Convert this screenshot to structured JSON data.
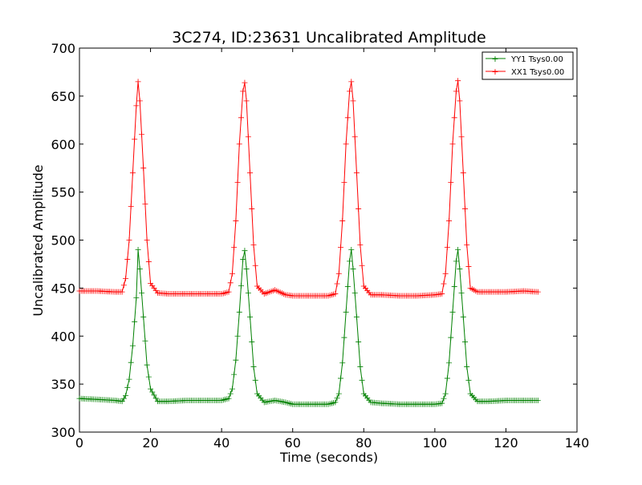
{
  "chart_data": {
    "type": "line",
    "title": "3C274, ID:23631 Uncalibrated Amplitude",
    "xlabel": "Time (seconds)",
    "ylabel": "Uncalibrated Amplitude",
    "xlim": [
      0,
      140
    ],
    "ylim": [
      300,
      700
    ],
    "xticks": [
      0,
      20,
      40,
      60,
      80,
      100,
      120,
      140
    ],
    "yticks": [
      300,
      350,
      400,
      450,
      500,
      550,
      600,
      650,
      700
    ],
    "grid": false,
    "legend_position": "top-right",
    "marker": "plus",
    "series": [
      {
        "name": "YY1 Tsys0.00",
        "color": "#008000",
        "peaks": [
          16.5,
          46.5,
          76.5,
          106.5
        ],
        "peak_values": [
          490,
          489,
          490,
          490
        ],
        "sample_interval": 0.5,
        "x_range": [
          0,
          129
        ],
        "x": [
          0,
          5,
          10,
          12,
          13,
          14,
          15,
          16,
          16.5,
          17,
          18,
          19,
          20,
          22,
          25,
          30,
          35,
          40,
          42,
          43,
          44,
          45,
          46,
          46.5,
          47,
          48,
          49,
          50,
          52,
          55,
          58,
          60,
          65,
          70,
          72,
          73,
          74,
          75,
          76,
          76.5,
          77,
          78,
          79,
          80,
          82,
          85,
          90,
          95,
          100,
          102,
          103,
          104,
          105,
          106,
          106.5,
          107,
          108,
          109,
          110,
          112,
          115,
          120,
          125,
          129
        ],
        "y": [
          335,
          334,
          333,
          332,
          338,
          355,
          390,
          440,
          490,
          470,
          420,
          370,
          345,
          332,
          332,
          333,
          333,
          333,
          335,
          345,
          375,
          425,
          480,
          489,
          470,
          420,
          368,
          340,
          331,
          333,
          331,
          329,
          329,
          329,
          331,
          340,
          372,
          425,
          478,
          490,
          470,
          420,
          368,
          340,
          331,
          330,
          329,
          329,
          329,
          330,
          340,
          372,
          425,
          478,
          490,
          470,
          420,
          368,
          340,
          332,
          332,
          333,
          333,
          333
        ]
      },
      {
        "name": "XX1 Tsys0.00",
        "color": "#ff0000",
        "peaks": [
          16.5,
          46.5,
          76.5,
          106.5
        ],
        "peak_values": [
          665,
          664,
          665,
          666
        ],
        "sample_interval": 0.5,
        "x_range": [
          0,
          129
        ],
        "x": [
          0,
          5,
          10,
          12,
          13,
          14,
          15,
          16,
          16.5,
          17,
          18,
          19,
          20,
          22,
          25,
          30,
          35,
          40,
          42,
          43,
          44,
          45,
          46,
          46.5,
          47,
          48,
          49,
          50,
          52,
          55,
          58,
          60,
          65,
          70,
          72,
          73,
          74,
          75,
          76,
          76.5,
          77,
          78,
          79,
          80,
          82,
          85,
          90,
          95,
          100,
          102,
          103,
          104,
          105,
          106,
          106.5,
          107,
          108,
          109,
          110,
          112,
          115,
          120,
          125,
          129
        ],
        "y": [
          447,
          447,
          446,
          446,
          460,
          500,
          570,
          640,
          665,
          645,
          575,
          500,
          455,
          445,
          444,
          444,
          444,
          444,
          446,
          465,
          520,
          600,
          655,
          664,
          645,
          570,
          495,
          452,
          444,
          448,
          443,
          442,
          442,
          442,
          444,
          465,
          520,
          600,
          655,
          665,
          645,
          570,
          495,
          452,
          443,
          443,
          442,
          442,
          443,
          444,
          465,
          520,
          600,
          655,
          666,
          645,
          570,
          495,
          450,
          446,
          446,
          446,
          447,
          446
        ]
      }
    ]
  }
}
